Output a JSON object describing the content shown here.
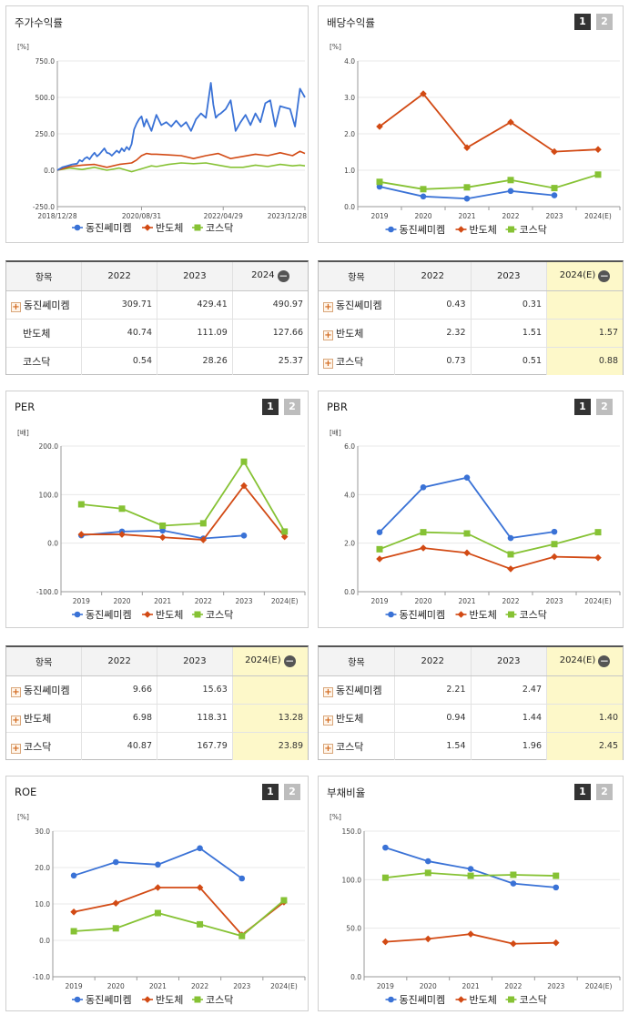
{
  "series_names": [
    "동진쎄미켐",
    "반도체",
    "코스닥"
  ],
  "colors": {
    "s0": "#3a72d6",
    "s1": "#d24a14",
    "s2": "#86c234"
  },
  "icons": {
    "expand": "plus-square-icon",
    "collapse": "minus-circle-icon"
  },
  "page_buttons": [
    "1",
    "2"
  ],
  "charts": {
    "stock": {
      "title": "주가수익률",
      "unit": "[%]",
      "chart_data": {
        "type": "line",
        "ylim": [
          -250,
          750
        ],
        "yticks": [
          "750.0",
          "500.0",
          "250.0",
          "0.0",
          "-250.0"
        ],
        "xticks": [
          "2018/12/28",
          "2020/08/31",
          "2022/04/29",
          "2023/12/28"
        ],
        "xlim": [
          0,
          100
        ],
        "xtick_pos": [
          0,
          34,
          67,
          100
        ],
        "series": [
          {
            "name": "동진쎄미켐",
            "x": [
              0,
              2,
              4,
              6,
              8,
              9,
              10,
              11,
              12,
              13,
              14,
              15,
              16,
              17,
              18,
              19,
              20,
              21,
              22,
              24,
              25,
              26,
              27,
              28,
              29,
              30,
              31,
              32,
              33,
              34,
              35,
              36,
              38,
              40,
              42,
              44,
              46,
              48,
              50,
              52,
              54,
              56,
              58,
              60,
              62,
              63,
              64,
              65,
              66,
              68,
              70,
              72,
              74,
              76,
              78,
              80,
              82,
              84,
              86,
              88,
              90,
              92,
              94,
              96,
              98,
              100
            ],
            "values": [
              0,
              20,
              30,
              40,
              45,
              70,
              60,
              80,
              90,
              75,
              100,
              120,
              95,
              110,
              130,
              150,
              120,
              115,
              100,
              135,
              120,
              150,
              130,
              160,
              140,
              180,
              280,
              320,
              350,
              370,
              300,
              350,
              270,
              380,
              310,
              330,
              300,
              340,
              300,
              330,
              270,
              350,
              390,
              360,
              600,
              450,
              360,
              380,
              390,
              420,
              480,
              270,
              330,
              380,
              310,
              390,
              330,
              460,
              480,
              300,
              440,
              430,
              420,
              300,
              560,
              500
            ]
          },
          {
            "name": "반도체",
            "x": [
              0,
              5,
              10,
              15,
              20,
              25,
              30,
              32,
              34,
              36,
              38,
              40,
              45,
              50,
              55,
              60,
              65,
              70,
              75,
              80,
              85,
              90,
              95,
              98,
              100
            ],
            "values": [
              0,
              25,
              35,
              40,
              20,
              40,
              50,
              70,
              100,
              115,
              110,
              110,
              105,
              100,
              80,
              100,
              115,
              80,
              95,
              110,
              100,
              120,
              100,
              130,
              115
            ]
          },
          {
            "name": "코스닥",
            "x": [
              0,
              5,
              10,
              15,
              20,
              25,
              30,
              35,
              38,
              40,
              45,
              50,
              55,
              60,
              65,
              70,
              75,
              80,
              85,
              90,
              95,
              98,
              100
            ],
            "values": [
              0,
              15,
              5,
              20,
              0,
              15,
              -10,
              15,
              30,
              25,
              40,
              50,
              45,
              50,
              35,
              20,
              20,
              35,
              25,
              40,
              30,
              35,
              30
            ]
          }
        ]
      }
    },
    "dividend": {
      "title": "배당수익률",
      "unit": "[%]",
      "chart_data": {
        "type": "line",
        "categories": [
          "2019",
          "2020",
          "2021",
          "2022",
          "2023",
          "2024(E)"
        ],
        "ylim": [
          0,
          4
        ],
        "yticks": [
          "4.0",
          "3.0",
          "2.0",
          "1.0",
          "0.0"
        ],
        "series": [
          {
            "name": "동진쎄미켐",
            "values": [
              0.55,
              0.28,
              0.22,
              0.43,
              0.31,
              null
            ]
          },
          {
            "name": "반도체",
            "values": [
              2.2,
              3.1,
              1.62,
              2.32,
              1.51,
              1.57
            ]
          },
          {
            "name": "코스닥",
            "values": [
              0.68,
              0.48,
              0.53,
              0.73,
              0.51,
              0.88
            ]
          }
        ]
      }
    },
    "per": {
      "title": "PER",
      "unit": "[배]",
      "chart_data": {
        "type": "line",
        "categories": [
          "2019",
          "2020",
          "2021",
          "2022",
          "2023",
          "2024(E)"
        ],
        "ylim": [
          -100,
          200
        ],
        "yticks": [
          "200.0",
          "100.0",
          "0.0",
          "-100.0"
        ],
        "series": [
          {
            "name": "동진쎄미켐",
            "values": [
              16,
              24,
              26,
              9.66,
              15.63,
              null
            ]
          },
          {
            "name": "반도체",
            "values": [
              18,
              18,
              12,
              6.98,
              118.31,
              13.28
            ]
          },
          {
            "name": "코스닥",
            "values": [
              80,
              71,
              36,
              40.87,
              167.79,
              23.89
            ]
          }
        ]
      }
    },
    "pbr": {
      "title": "PBR",
      "unit": "[배]",
      "chart_data": {
        "type": "line",
        "categories": [
          "2019",
          "2020",
          "2021",
          "2022",
          "2023",
          "2024(E)"
        ],
        "ylim": [
          0,
          6
        ],
        "yticks": [
          "6.0",
          "4.0",
          "2.0",
          "0.0"
        ],
        "series": [
          {
            "name": "동진쎄미켐",
            "values": [
              2.45,
              4.3,
              4.7,
              2.21,
              2.47,
              null
            ]
          },
          {
            "name": "반도체",
            "values": [
              1.35,
              1.8,
              1.6,
              0.94,
              1.44,
              1.4
            ]
          },
          {
            "name": "코스닥",
            "values": [
              1.75,
              2.45,
              2.4,
              1.54,
              1.96,
              2.45
            ]
          }
        ]
      }
    },
    "roe": {
      "title": "ROE",
      "unit": "[%]",
      "chart_data": {
        "type": "line",
        "categories": [
          "2019",
          "2020",
          "2021",
          "2022",
          "2023",
          "2024(E)"
        ],
        "ylim": [
          -10,
          30
        ],
        "yticks": [
          "30.0",
          "20.0",
          "10.0",
          "0.0",
          "-10.0"
        ],
        "series": [
          {
            "name": "동진쎄미켐",
            "values": [
              17.8,
              21.5,
              20.8,
              25.3,
              17,
              null
            ]
          },
          {
            "name": "반도체",
            "values": [
              7.8,
              10.2,
              14.5,
              14.5,
              1.5,
              10.5
            ]
          },
          {
            "name": "코스닥",
            "values": [
              2.5,
              3.3,
              7.5,
              4.4,
              1.2,
              11
            ]
          }
        ]
      }
    },
    "debt": {
      "title": "부채비율",
      "unit": "[%]",
      "chart_data": {
        "type": "line",
        "categories": [
          "2019",
          "2020",
          "2021",
          "2022",
          "2023",
          "2024(E)"
        ],
        "ylim": [
          0,
          150
        ],
        "yticks": [
          "150.0",
          "100.0",
          "50.0",
          "0.0"
        ],
        "series": [
          {
            "name": "동진쎄미켐",
            "values": [
              133,
              119,
              111,
              96,
              92,
              null
            ]
          },
          {
            "name": "반도체",
            "values": [
              36,
              39,
              44,
              34,
              35,
              null
            ]
          },
          {
            "name": "코스닥",
            "values": [
              102,
              107,
              104,
              105,
              104,
              null
            ]
          }
        ]
      }
    }
  },
  "tables": {
    "stock": {
      "headers": [
        "항목",
        "2022",
        "2023",
        "2024"
      ],
      "rows": [
        {
          "name": "동진쎄미켐",
          "expand": true,
          "v": [
            "309.71",
            "429.41",
            "490.97"
          ]
        },
        {
          "name": "반도체",
          "expand": false,
          "v": [
            "40.74",
            "111.09",
            "127.66"
          ]
        },
        {
          "name": "코스닥",
          "expand": false,
          "v": [
            "0.54",
            "28.26",
            "25.37"
          ]
        }
      ]
    },
    "dividend": {
      "headers": [
        "항목",
        "2022",
        "2023",
        "2024(E)"
      ],
      "rows": [
        {
          "name": "동진쎄미켐",
          "expand": true,
          "v": [
            "0.43",
            "0.31",
            ""
          ]
        },
        {
          "name": "반도체",
          "expand": true,
          "v": [
            "2.32",
            "1.51",
            "1.57"
          ]
        },
        {
          "name": "코스닥",
          "expand": true,
          "v": [
            "0.73",
            "0.51",
            "0.88"
          ]
        }
      ]
    },
    "per": {
      "headers": [
        "항목",
        "2022",
        "2023",
        "2024(E)"
      ],
      "rows": [
        {
          "name": "동진쎄미켐",
          "expand": true,
          "v": [
            "9.66",
            "15.63",
            ""
          ]
        },
        {
          "name": "반도체",
          "expand": true,
          "v": [
            "6.98",
            "118.31",
            "13.28"
          ]
        },
        {
          "name": "코스닥",
          "expand": true,
          "v": [
            "40.87",
            "167.79",
            "23.89"
          ]
        }
      ]
    },
    "pbr": {
      "headers": [
        "항목",
        "2022",
        "2023",
        "2024(E)"
      ],
      "rows": [
        {
          "name": "동진쎄미켐",
          "expand": true,
          "v": [
            "2.21",
            "2.47",
            ""
          ]
        },
        {
          "name": "반도체",
          "expand": true,
          "v": [
            "0.94",
            "1.44",
            "1.40"
          ]
        },
        {
          "name": "코스닥",
          "expand": true,
          "v": [
            "1.54",
            "1.96",
            "2.45"
          ]
        }
      ]
    }
  }
}
